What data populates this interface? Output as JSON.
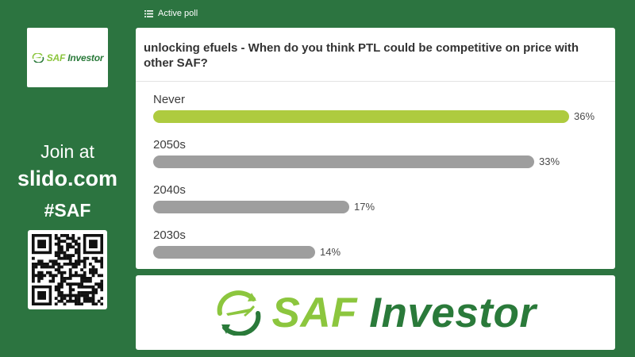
{
  "sidebar": {
    "logo": {
      "saf": "SAF",
      "rest": " Investor"
    },
    "join_line1": "Join at",
    "join_line2": "slido.com",
    "join_line3": "#SAF"
  },
  "header": {
    "active_poll_label": "Active poll",
    "icon": "list-icon"
  },
  "poll": {
    "question": "unlocking efuels - When do you think PTL could be competitive on price with other SAF?",
    "options": [
      {
        "label": "Never",
        "percent": 36,
        "percent_label": "36%",
        "color": "#aecb3f"
      },
      {
        "label": "2050s",
        "percent": 33,
        "percent_label": "33%",
        "color": "#9e9e9e"
      },
      {
        "label": "2040s",
        "percent": 17,
        "percent_label": "17%",
        "color": "#9e9e9e"
      },
      {
        "label": "2030s",
        "percent": 14,
        "percent_label": "14%",
        "color": "#9e9e9e"
      }
    ]
  },
  "banner": {
    "saf": "SAF",
    "rest": " Investor"
  },
  "colors": {
    "background": "#2c7440",
    "brand_dark": "#2a7a3a",
    "brand_light": "#8cc63e"
  }
}
